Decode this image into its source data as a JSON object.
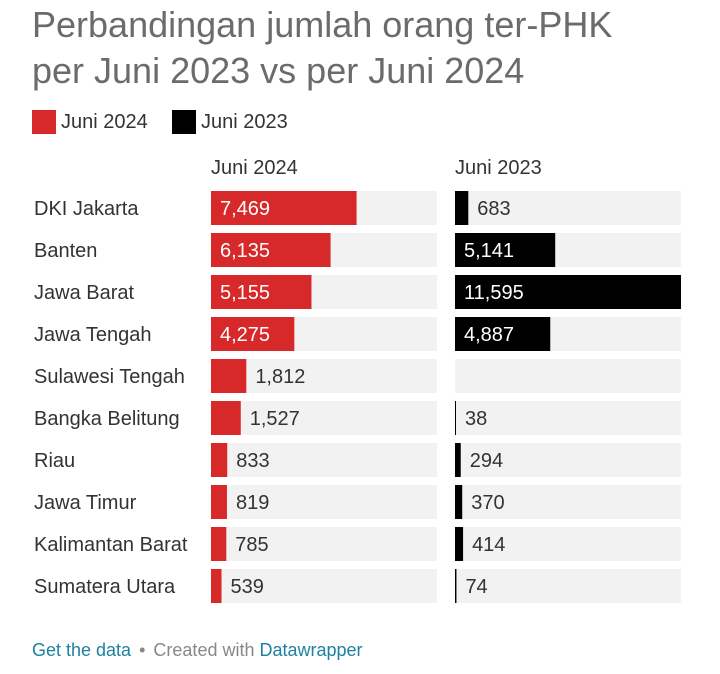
{
  "title_line1": "Perbandingan jumlah orang ter-PHK",
  "title_line2": "per Juni 2023 vs per Juni 2024",
  "legend": [
    {
      "label": "Juni 2024",
      "color": "#d7282a"
    },
    {
      "label": "Juni 2023",
      "color": "#000000"
    }
  ],
  "columns": {
    "left_header": "Juni 2024",
    "right_header": "Juni 2023"
  },
  "footer": {
    "get_data": "Get the data",
    "separator": "•",
    "created_with": "Created with",
    "datawrapper": "Datawrapper"
  },
  "chart_data": {
    "type": "bar",
    "orientation": "horizontal",
    "categories": [
      "DKI Jakarta",
      "Banten",
      "Jawa Barat",
      "Jawa Tengah",
      "Sulawesi Tengah",
      "Bangka Belitung",
      "Riau",
      "Jawa Timur",
      "Kalimantan Barat",
      "Sumatera Utara"
    ],
    "series": [
      {
        "name": "Juni 2024",
        "color": "#d7282a",
        "values": [
          7469,
          6135,
          5155,
          4275,
          1812,
          1527,
          833,
          819,
          785,
          539
        ],
        "labels": [
          "7,469",
          "6,135",
          "5,155",
          "4,275",
          "1,812",
          "1,527",
          "833",
          "819",
          "785",
          "539"
        ]
      },
      {
        "name": "Juni 2023",
        "color": "#000000",
        "values": [
          683,
          5141,
          11595,
          4887,
          null,
          38,
          294,
          370,
          414,
          74
        ],
        "labels": [
          "683",
          "5,141",
          "11,595",
          "4,887",
          "",
          "38",
          "294",
          "370",
          "414",
          "74"
        ]
      }
    ],
    "xlim": [
      0,
      11595
    ],
    "background_bar_color": "#f2f2f2",
    "legend_position": "top-left"
  }
}
